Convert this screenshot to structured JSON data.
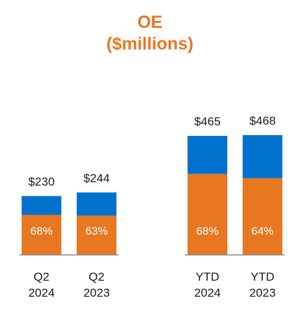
{
  "chart_data": {
    "type": "bar",
    "stacked": true,
    "title": "OE",
    "subtitle": "($millions)",
    "categories": [
      [
        "Q2",
        "2024"
      ],
      [
        "Q2",
        "2023"
      ],
      [
        "YTD",
        "2024"
      ],
      [
        "YTD",
        "2023"
      ]
    ],
    "totals": [
      230,
      244,
      465,
      468
    ],
    "total_labels": [
      "$230",
      "$244",
      "$465",
      "$468"
    ],
    "orange_share_labels": [
      "68%",
      "63%",
      "68%",
      "64%"
    ],
    "orange_share": [
      0.68,
      0.63,
      0.68,
      0.64
    ],
    "colors": {
      "orange": "#e87722",
      "blue": "#0072ce",
      "axis": "#888888"
    },
    "ylim": [
      0,
      468
    ],
    "grid": false,
    "legend": "none"
  }
}
